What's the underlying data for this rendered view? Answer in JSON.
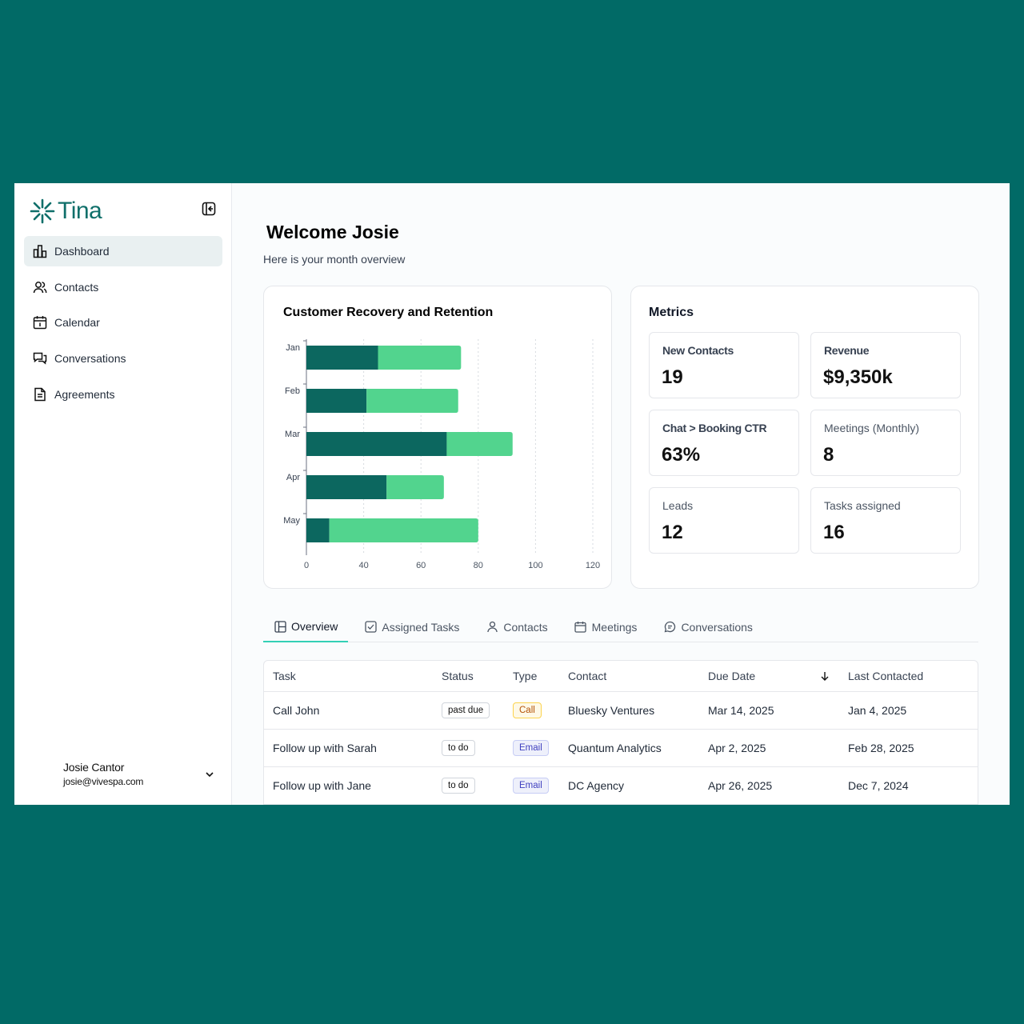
{
  "app": {
    "logo_text": "Tina",
    "brand_color": "#0f6f6a",
    "accent_color": "#34d0b6",
    "background_color": "#016a66"
  },
  "sidebar": {
    "items": [
      {
        "label": "Dashboard",
        "icon": "bar-chart-icon",
        "active": true
      },
      {
        "label": "Contacts",
        "icon": "users-icon"
      },
      {
        "label": "Calendar",
        "icon": "calendar-icon"
      },
      {
        "label": "Conversations",
        "icon": "chat-icon"
      },
      {
        "label": "Agreements",
        "icon": "document-icon"
      }
    ],
    "user": {
      "name": "Josie Cantor",
      "email": "josie@vivespa.com"
    }
  },
  "header": {
    "welcome": "Welcome Josie",
    "subtitle": "Here is your month overview"
  },
  "chart": {
    "title": "Customer Recovery and Retention"
  },
  "chart_data": {
    "type": "bar",
    "orientation": "horizontal",
    "stacked": true,
    "categories": [
      "Jan",
      "Feb",
      "Mar",
      "Apr",
      "May"
    ],
    "series": [
      {
        "values": [
          45,
          41,
          69,
          48,
          16
        ],
        "color": "#0c675f"
      },
      {
        "values": [
          29,
          32,
          23,
          20,
          64
        ],
        "color": "#52d48e"
      }
    ],
    "xlim": [
      0,
      120
    ],
    "xticks": [
      "0",
      "40",
      "60",
      "80",
      "100",
      "120"
    ],
    "grid": true
  },
  "metrics": {
    "title": "Metrics",
    "items": [
      {
        "label": "New Contacts",
        "value": "19"
      },
      {
        "label": "Revenue",
        "value": "$9,350k"
      },
      {
        "label": "Chat > Booking CTR",
        "value": "63%"
      },
      {
        "label": "Meetings (Monthly)",
        "value": "8"
      },
      {
        "label": "Leads",
        "value": "12"
      },
      {
        "label": "Tasks assigned",
        "value": "16"
      }
    ]
  },
  "tabs": [
    {
      "label": "Overview",
      "icon": "layout-icon",
      "active": true
    },
    {
      "label": "Assigned Tasks",
      "icon": "checkbox-icon"
    },
    {
      "label": "Contacts",
      "icon": "user-icon"
    },
    {
      "label": "Meetings",
      "icon": "calendar-icon"
    },
    {
      "label": "Conversations",
      "icon": "chat-bubble-icon"
    }
  ],
  "table": {
    "columns": [
      "Task",
      "Status",
      "Type",
      "Contact",
      "Due Date",
      "Last Contacted"
    ],
    "rows": [
      {
        "task": "Call John",
        "status": "past due",
        "type": "Call",
        "contact": "Bluesky Ventures",
        "due": "Mar 14, 2025",
        "last": "Jan 4, 2025"
      },
      {
        "task": "Follow up with Sarah",
        "status": "to do",
        "type": "Email",
        "contact": "Quantum Analytics",
        "due": "Apr 2, 2025",
        "last": "Feb 28, 2025"
      },
      {
        "task": "Follow up with Jane",
        "status": "to do",
        "type": "Email",
        "contact": "DC Agency",
        "due": "Apr 26, 2025",
        "last": "Dec 7, 2024"
      }
    ]
  }
}
